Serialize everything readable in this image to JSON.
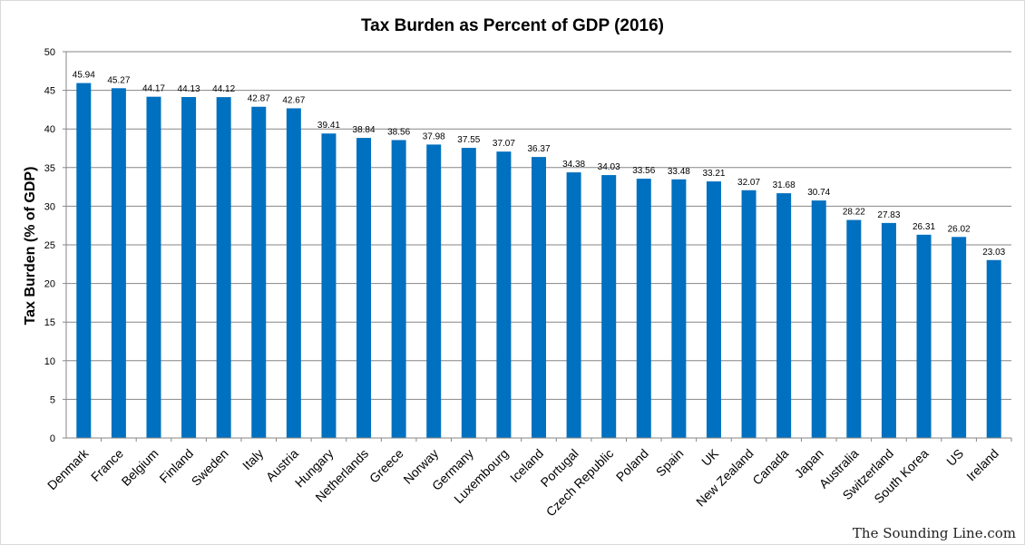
{
  "watermark": "The Sounding Line.com",
  "chart_data": {
    "type": "bar",
    "title": "Tax Burden as Percent of GDP (2016)",
    "xlabel": "",
    "ylabel": "Tax Burden (% of GDP)",
    "ylim": [
      0,
      50
    ],
    "yticks": [
      0,
      5,
      10,
      15,
      20,
      25,
      30,
      35,
      40,
      45,
      50
    ],
    "grid": true,
    "legend": "none",
    "bar_color": "#0070C0",
    "categories": [
      "Denmark",
      "France",
      "Belgium",
      "Finland",
      "Sweden",
      "Italy",
      "Austria",
      "Hungary",
      "Netherlands",
      "Greece",
      "Norway",
      "Germany",
      "Luxembourg",
      "Iceland",
      "Portugal",
      "Czech Republic",
      "Poland",
      "Spain",
      "UK",
      "New Zealand",
      "Canada",
      "Japan",
      "Australia",
      "Switzerland",
      "South Korea",
      "US",
      "Ireland"
    ],
    "values": [
      45.94,
      45.27,
      44.17,
      44.13,
      44.12,
      42.87,
      42.67,
      39.41,
      38.84,
      38.56,
      37.98,
      37.55,
      37.07,
      36.37,
      34.38,
      34.03,
      33.56,
      33.48,
      33.21,
      32.07,
      31.68,
      30.74,
      28.22,
      27.83,
      26.31,
      26.02,
      23.03
    ]
  }
}
